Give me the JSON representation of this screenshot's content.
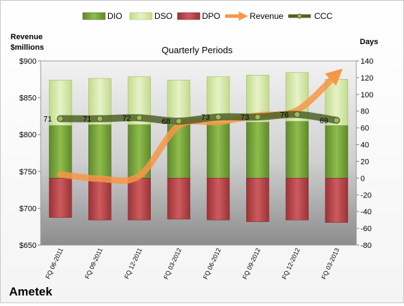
{
  "company": "Ametek",
  "chart_data": {
    "type": "bar",
    "title": "Quarterly Periods",
    "left_axis": {
      "label_line1": "Revenue",
      "label_line2": "$millions",
      "min": 650,
      "max": 900,
      "step": 50,
      "ticks": [
        "$900",
        "$850",
        "$800",
        "$750",
        "$700",
        "$650"
      ]
    },
    "right_axis": {
      "label": "Days",
      "min": -80,
      "max": 140,
      "step": 20,
      "ticks": [
        "140",
        "120",
        "100",
        "80",
        "60",
        "40",
        "20",
        "0",
        "-20",
        "-40",
        "-60",
        "-80"
      ]
    },
    "categories": [
      "FQ 06-2011",
      "FQ 09-2011",
      "FQ 12-2011",
      "FQ 03-2012",
      "FQ 06-2012",
      "FQ 09-2012",
      "FQ 12-2012",
      "FQ 03-2013"
    ],
    "legend": [
      "DIO",
      "DSO",
      "DPO",
      "Revenue",
      "CCC"
    ],
    "legend_position": "top",
    "series": [
      {
        "name": "DIO",
        "axis": "days",
        "values": [
          63,
          64,
          64,
          64,
          66,
          67,
          68,
          63
        ],
        "color": "#77a03a"
      },
      {
        "name": "DSO",
        "axis": "days",
        "values": [
          54,
          55,
          57,
          53,
          55,
          56,
          58,
          55
        ],
        "color": "#d4e6a8"
      },
      {
        "name": "DPO",
        "axis": "days",
        "values": [
          -47,
          -50,
          -50,
          -49,
          -50,
          -52,
          -50,
          -53
        ],
        "color": "#b7474a"
      },
      {
        "name": "Revenue",
        "axis": "revenue",
        "values": [
          746,
          740,
          744,
          812,
          817,
          826,
          833,
          882
        ],
        "color": "#f79646"
      },
      {
        "name": "CCC",
        "axis": "days",
        "values": [
          71,
          71,
          72,
          68,
          73,
          73,
          76,
          69
        ],
        "color": "#4f6228"
      }
    ],
    "ccc_labels": [
      "71",
      "71",
      "72",
      "68",
      "73",
      "73",
      "76",
      "69"
    ],
    "grid": false
  }
}
